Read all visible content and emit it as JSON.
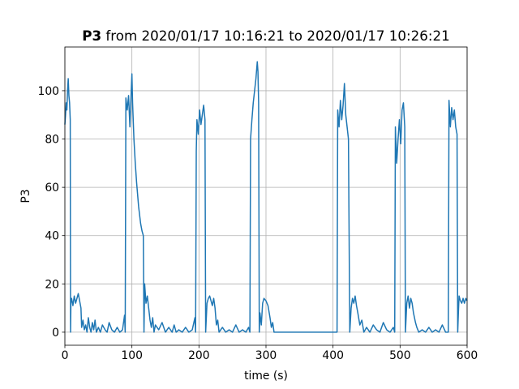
{
  "chart_data": {
    "type": "line",
    "title": [
      "P3",
      "from 2020/01/17 10:16:21 to 2020/01/17 10:26:21"
    ],
    "x_label": "time (s)",
    "y_label": "P3",
    "xlim": [
      0,
      600
    ],
    "ylim": [
      -5.4,
      118.1
    ],
    "xticks": [
      0,
      100,
      200,
      300,
      400,
      500,
      600
    ],
    "yticks": [
      0,
      20,
      40,
      60,
      80,
      100
    ],
    "grid": true,
    "series": [
      {
        "color": "#1f77b4",
        "x": [
          0,
          1,
          2,
          3,
          4,
          5,
          6,
          7,
          8,
          8.5,
          9,
          10,
          12,
          14,
          16,
          18,
          20,
          22,
          24,
          25,
          27,
          29,
          31,
          33,
          35,
          37,
          39,
          41,
          43,
          45,
          47,
          50,
          53,
          56,
          60,
          63,
          66,
          70,
          74,
          78,
          82,
          86,
          89,
          90,
          91,
          93,
          95,
          97,
          99,
          100,
          101,
          103,
          105,
          107,
          110,
          113,
          115,
          117,
          118,
          119,
          121,
          123,
          125,
          127,
          129,
          131,
          133,
          135,
          140,
          145,
          150,
          155,
          160,
          163,
          166,
          170,
          175,
          180,
          185,
          190,
          194,
          195,
          196,
          197,
          199,
          201,
          203,
          205,
          207,
          209,
          210,
          212,
          214,
          216,
          218,
          220,
          222,
          224,
          226,
          228,
          230,
          235,
          240,
          245,
          250,
          255,
          260,
          265,
          270,
          274,
          276,
          277,
          279,
          281,
          283,
          285,
          287,
          288,
          289,
          290,
          291,
          293,
          295,
          297,
          300,
          303,
          306,
          308,
          310,
          312,
          320,
          340,
          360,
          380,
          400,
          406,
          407,
          409,
          411,
          413,
          415,
          417,
          419,
          421,
          423,
          425,
          427,
          429,
          431,
          433,
          435,
          437,
          440,
          443,
          446,
          450,
          455,
          460,
          465,
          470,
          475,
          480,
          485,
          490,
          492,
          493,
          495,
          497,
          499,
          501,
          503,
          505,
          507,
          508,
          510,
          512,
          514,
          516,
          518,
          520,
          523,
          525,
          528,
          533,
          538,
          543,
          548,
          553,
          558,
          563,
          568,
          572,
          573,
          575,
          577,
          579,
          581,
          583,
          585,
          586,
          587,
          588,
          590,
          592,
          594,
          596,
          598,
          600
        ],
        "values": [
          86,
          90,
          95,
          92,
          100,
          105,
          98,
          95,
          88,
          0,
          12,
          14,
          11,
          15,
          12,
          14,
          16,
          13,
          10,
          2,
          5,
          1,
          3,
          0,
          6,
          2,
          0,
          4,
          1,
          5,
          0,
          2,
          0,
          3,
          1,
          0,
          4,
          1,
          0,
          2,
          0,
          1,
          7,
          0,
          97,
          92,
          98,
          85,
          100,
          107,
          95,
          80,
          70,
          62,
          52,
          45,
          42,
          40,
          0,
          20,
          12,
          15,
          10,
          5,
          2,
          6,
          0,
          3,
          1,
          4,
          0,
          2,
          0,
          3,
          0,
          1,
          0,
          2,
          0,
          1,
          6,
          0,
          75,
          88,
          82,
          92,
          86,
          90,
          94,
          88,
          0,
          12,
          14,
          15,
          13,
          11,
          14,
          10,
          3,
          5,
          0,
          2,
          0,
          1,
          0,
          3,
          0,
          1,
          0,
          2,
          0,
          80,
          88,
          95,
          100,
          105,
          112,
          108,
          95,
          0,
          8,
          3,
          12,
          14,
          13,
          11,
          6,
          2,
          4,
          0,
          0,
          0,
          0,
          0,
          0,
          0,
          92,
          85,
          96,
          88,
          94,
          103,
          90,
          85,
          80,
          0,
          10,
          14,
          12,
          15,
          11,
          8,
          3,
          5,
          0,
          2,
          0,
          3,
          1,
          0,
          4,
          1,
          0,
          2,
          0,
          85,
          70,
          80,
          88,
          78,
          92,
          95,
          85,
          0,
          12,
          15,
          10,
          14,
          12,
          8,
          4,
          2,
          0,
          1,
          0,
          2,
          0,
          1,
          0,
          3,
          0,
          0,
          96,
          85,
          93,
          88,
          92,
          85,
          82,
          0,
          8,
          15,
          13,
          12,
          14,
          12,
          14,
          13
        ]
      }
    ]
  }
}
